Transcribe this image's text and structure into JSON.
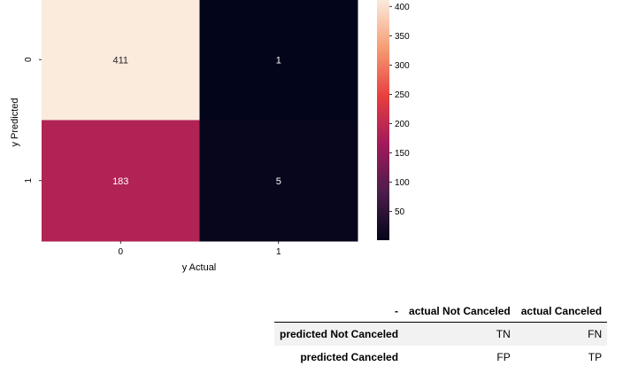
{
  "chart_data": {
    "type": "heatmap",
    "xlabel": "y Actual",
    "ylabel": "y Predicted",
    "x_categories": [
      "0",
      "1"
    ],
    "y_categories": [
      "0",
      "1"
    ],
    "values": [
      [
        411,
        1
      ],
      [
        183,
        5
      ]
    ],
    "colorbar": {
      "vmin": 1,
      "vmax": 411,
      "ticks": [
        50,
        100,
        150,
        200,
        250,
        300,
        350,
        400
      ],
      "palette": [
        "#03051a",
        "#4c1d4b",
        "#a11a5b",
        "#e83f3f",
        "#f69c73",
        "#faebdd"
      ]
    }
  },
  "table": {
    "corner": "-",
    "columns": [
      "actual Not Canceled",
      "actual Canceled"
    ],
    "rows": [
      {
        "label": "predicted Not Canceled",
        "cells": [
          "TN",
          "FN"
        ]
      },
      {
        "label": "predicted Canceled",
        "cells": [
          "FP",
          "TP"
        ]
      }
    ]
  }
}
